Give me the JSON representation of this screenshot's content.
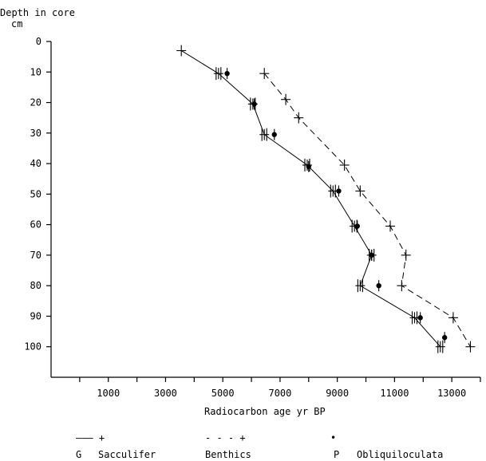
{
  "chart_data": {
    "type": "line",
    "ylabel_line1": "Depth in core",
    "ylabel_line2": "cm",
    "xlabel": "Radiocarbon age yr BP",
    "x_ticks": [
      1000,
      3000,
      5000,
      7000,
      9000,
      11000,
      13000
    ],
    "y_ticks": [
      0,
      10,
      20,
      30,
      40,
      50,
      60,
      70,
      80,
      90,
      100
    ],
    "xlim": [
      -1000,
      14000
    ],
    "ylim": [
      0,
      110
    ],
    "series": [
      {
        "key": "G",
        "name": "Sacculifer",
        "legend_symbol": "——— +",
        "style": "solid-line-plus",
        "points": [
          {
            "x": 3550,
            "y": 3
          },
          {
            "x": 4850,
            "y": 10.5
          },
          {
            "x": 6050,
            "y": 20.5
          },
          {
            "x": 6450,
            "y": 30.5
          },
          {
            "x": 7950,
            "y": 40.5
          },
          {
            "x": 8850,
            "y": 49
          },
          {
            "x": 9600,
            "y": 60.5
          },
          {
            "x": 10200,
            "y": 70
          },
          {
            "x": 9800,
            "y": 80
          },
          {
            "x": 11700,
            "y": 90.5
          },
          {
            "x": 12600,
            "y": 100
          }
        ]
      },
      {
        "key": "",
        "name": "Benthics",
        "legend_symbol": "- - - +",
        "style": "dashed-line-plus",
        "points": [
          {
            "x": 6450,
            "y": 10.5
          },
          {
            "x": 7200,
            "y": 19
          },
          {
            "x": 7650,
            "y": 25
          },
          {
            "x": 9250,
            "y": 40.5
          },
          {
            "x": 9800,
            "y": 49
          },
          {
            "x": 10850,
            "y": 60.5
          },
          {
            "x": 11400,
            "y": 70
          },
          {
            "x": 11250,
            "y": 80
          },
          {
            "x": 13050,
            "y": 90.5
          },
          {
            "x": 13650,
            "y": 100
          }
        ]
      },
      {
        "key": "P",
        "name": "Obliquiloculata",
        "legend_symbol": "•",
        "style": "dot",
        "points": [
          {
            "x": 5150,
            "y": 10.5
          },
          {
            "x": 6100,
            "y": 20.5
          },
          {
            "x": 6800,
            "y": 30.5
          },
          {
            "x": 8000,
            "y": 41
          },
          {
            "x": 9050,
            "y": 49
          },
          {
            "x": 9700,
            "y": 60.5
          },
          {
            "x": 10200,
            "y": 70
          },
          {
            "x": 10450,
            "y": 80
          },
          {
            "x": 11900,
            "y": 90.5
          },
          {
            "x": 12750,
            "y": 97
          }
        ]
      }
    ],
    "error_bars": {
      "series": "Sacculifer",
      "points": [
        {
          "x": 4850,
          "y": 10.5
        },
        {
          "x": 6050,
          "y": 20.5
        },
        {
          "x": 6450,
          "y": 30.5
        },
        {
          "x": 7950,
          "y": 40.5
        },
        {
          "x": 8850,
          "y": 49
        },
        {
          "x": 9600,
          "y": 60.5
        },
        {
          "x": 10200,
          "y": 70
        },
        {
          "x": 9800,
          "y": 80
        },
        {
          "x": 11700,
          "y": 90.5
        },
        {
          "x": 12600,
          "y": 100
        }
      ]
    },
    "grid": false
  }
}
